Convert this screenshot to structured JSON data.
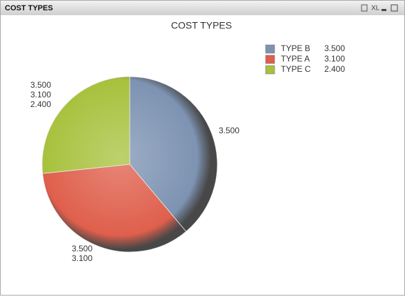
{
  "window": {
    "title": "COST TYPES",
    "xl_button": "XL"
  },
  "chart_data": {
    "type": "pie",
    "title": "COST TYPES",
    "categories": [
      "TYPE B",
      "TYPE A",
      "TYPE C"
    ],
    "values": [
      3.5,
      3.1,
      2.4
    ],
    "value_labels": [
      "3.500",
      "3.100",
      "2.400"
    ],
    "colors": [
      "#7d93b2",
      "#df5f4c",
      "#a7c13c"
    ],
    "legend": "top-right"
  }
}
